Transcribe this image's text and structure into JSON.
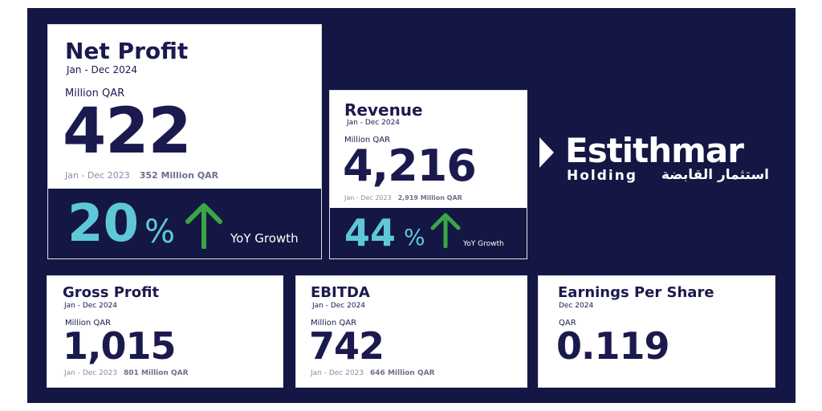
{
  "net_profit": {
    "title": "Net Profit",
    "period": "Jan -  Dec 2024",
    "unit": "Million QAR",
    "value": "422",
    "prev_period": "Jan - Dec 2023",
    "prev_value": "352 Million QAR",
    "growth_value": "20",
    "growth_unit": "%",
    "growth_label": "YoY Growth"
  },
  "revenue": {
    "title": "Revenue",
    "period": "Jan -  Dec 2024",
    "unit": "Million QAR",
    "value": "4,216",
    "prev_period": "Jan - Dec 2023",
    "prev_value": "2,919 Million QAR",
    "growth_value": "44",
    "growth_unit": "%",
    "growth_label": "YoY Growth"
  },
  "brand": {
    "name": "Estithmar",
    "sub_en": "Holding",
    "sub_ar": "استثمار القابضة"
  },
  "gross_profit": {
    "title": "Gross Profit",
    "period": "Jan - Dec 2024",
    "unit": "Million QAR",
    "value": "1,015",
    "prev_period": "Jan - Dec 2023",
    "prev_value": "801 Million QAR"
  },
  "ebitda": {
    "title": "EBITDA",
    "period": "Jan - Dec 2024",
    "unit": "Million QAR",
    "value": "742",
    "prev_period": "Jan - Dec 2023",
    "prev_value": "646 Million QAR"
  },
  "eps": {
    "title": "Earnings Per Share",
    "period": "Dec 2024",
    "unit": "QAR",
    "value": "0.119"
  },
  "colors": {
    "navy": "#141743",
    "teal": "#5ec8d8",
    "arrow_green": "#3aa646",
    "text_dark": "#1b1a4f"
  },
  "icons": {
    "growth_arrow": "up-arrow-icon",
    "logo_mark": "chevron-right-icon"
  }
}
